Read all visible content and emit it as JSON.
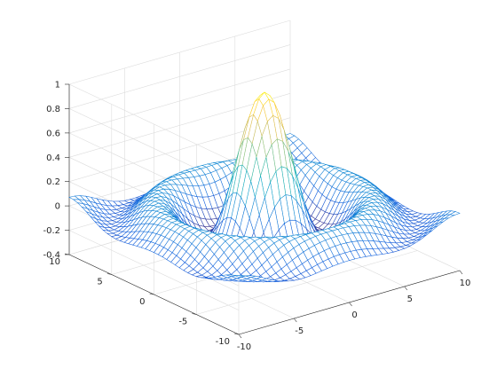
{
  "chart_data": {
    "type": "surface-mesh",
    "function": "sinc",
    "title": "",
    "xlabel": "",
    "ylabel": "",
    "zlabel": "",
    "x_range": [
      -10,
      10
    ],
    "y_range": [
      -10,
      10
    ],
    "z_range": [
      -0.4,
      1
    ],
    "x_ticks": [
      "-10",
      "-5",
      "0",
      "5",
      "10"
    ],
    "y_ticks": [
      "-10",
      "-5",
      "0",
      "5",
      "10"
    ],
    "z_ticks": [
      "-0.4",
      "-0.2",
      "0",
      "0.2",
      "0.4",
      "0.6",
      "0.8",
      "1"
    ],
    "grid_points": 41,
    "colormap": "parula",
    "colormap_stops": [
      "#352a87",
      "#0f5cdd",
      "#1481d6",
      "#06a4ca",
      "#2eb7a4",
      "#87bf77",
      "#d1bb59",
      "#fec832",
      "#f9fb0e"
    ],
    "grid": true,
    "box": false,
    "view": "3D default (azimuth -37.5, elevation 30)"
  }
}
